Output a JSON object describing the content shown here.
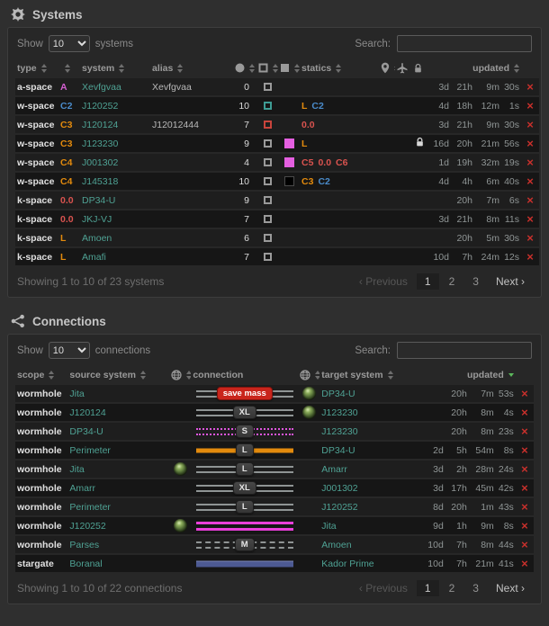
{
  "colors": {
    "link": "#4fa294",
    "orange": "#e28a0d",
    "blue": "#4a8bca",
    "red": "#d9534f",
    "magenta": "#d45fd0",
    "green_sort": "#5cb85c",
    "delete_red": "#c9302c",
    "box_grey": "#9a9a9a",
    "box_teal": "#3e9c94",
    "box_red": "#c9443c",
    "tag_magenta": "#e45fe0",
    "tag_black": "#000000",
    "line_grey": "#8f9494",
    "line_orange": "#e28a0d",
    "line_magenta": "#ea3fda",
    "line_dotted_magenta": "#df56df",
    "line_navy": "#4d5a93",
    "badge_danger_bg": "#c9251c",
    "updated_cell_bg": "rgba(66,139,139,0.16)"
  },
  "systems": {
    "title": "Systems",
    "title_icon": "gear-icon",
    "controls": {
      "show_label": "Show",
      "show_value": "10",
      "show_unit": "systems",
      "search_label": "Search:",
      "search_value": ""
    },
    "columns": [
      {
        "key": "type",
        "label": "type",
        "sortable": true
      },
      {
        "key": "security",
        "label": "",
        "sortable": true
      },
      {
        "key": "system",
        "label": "system",
        "sortable": true
      },
      {
        "key": "alias",
        "label": "alias",
        "sortable": true
      },
      {
        "key": "count",
        "icon": "circle-icon",
        "sortable": true
      },
      {
        "key": "status",
        "icon": "square-outline-icon",
        "sortable": true
      },
      {
        "key": "tag",
        "icon": "square-filled-icon",
        "sortable": true
      },
      {
        "key": "statics",
        "label": "statics",
        "sortable": true
      },
      {
        "key": "location",
        "icon": "map-pin-icon",
        "sortable": true
      },
      {
        "key": "jumps",
        "icon": "plane-icon",
        "sortable": true
      },
      {
        "key": "locked",
        "icon": "lock-icon",
        "sortable": true
      },
      {
        "key": "updated",
        "label": "updated",
        "sortable": true
      },
      {
        "key": "delete",
        "label": ""
      }
    ],
    "rows": [
      {
        "type": "a-space",
        "sec": "A",
        "sec_color": "magenta",
        "system": "Xevfgvaa",
        "alias": "Xevfgvaa",
        "count": "0",
        "box": "box_grey",
        "tag": null,
        "statics": [],
        "locked": false,
        "updated": [
          "3d",
          "21h",
          "9m",
          "30s"
        ]
      },
      {
        "type": "w-space",
        "sec": "C2",
        "sec_color": "blue",
        "system": "J120252",
        "alias": "",
        "count": "10",
        "box": "box_teal",
        "tag": null,
        "statics": [
          [
            "L",
            "orange"
          ],
          [
            "C2",
            "blue"
          ]
        ],
        "locked": false,
        "updated": [
          "4d",
          "18h",
          "12m",
          "1s"
        ]
      },
      {
        "type": "w-space",
        "sec": "C3",
        "sec_color": "orange",
        "system": "J120124",
        "alias": "J12012444",
        "count": "7",
        "box": "box_red",
        "tag": null,
        "statics": [
          [
            "0.0",
            "red"
          ]
        ],
        "locked": false,
        "updated": [
          "3d",
          "21h",
          "9m",
          "30s"
        ]
      },
      {
        "type": "w-space",
        "sec": "C3",
        "sec_color": "orange",
        "system": "J123230",
        "alias": "",
        "count": "9",
        "box": "box_grey",
        "tag": "tag_magenta",
        "statics": [
          [
            "L",
            "orange"
          ]
        ],
        "locked": true,
        "updated": [
          "16d",
          "20h",
          "21m",
          "56s"
        ]
      },
      {
        "type": "w-space",
        "sec": "C4",
        "sec_color": "orange",
        "system": "J001302",
        "alias": "",
        "count": "4",
        "box": "box_grey",
        "tag": "tag_magenta",
        "statics": [
          [
            "C5",
            "red"
          ],
          [
            "0.0",
            "red"
          ],
          [
            "C6",
            "red"
          ]
        ],
        "locked": false,
        "updated": [
          "1d",
          "19h",
          "32m",
          "19s"
        ]
      },
      {
        "type": "w-space",
        "sec": "C4",
        "sec_color": "orange",
        "system": "J145318",
        "alias": "",
        "count": "10",
        "box": "box_grey",
        "tag": "tag_black",
        "statics": [
          [
            "C3",
            "orange"
          ],
          [
            "C2",
            "blue"
          ]
        ],
        "locked": false,
        "updated": [
          "4d",
          "4h",
          "6m",
          "40s"
        ]
      },
      {
        "type": "k-space",
        "sec": "0.0",
        "sec_color": "red",
        "system": "DP34-U",
        "alias": "",
        "count": "9",
        "box": "box_grey",
        "tag": null,
        "statics": [],
        "locked": false,
        "updated": [
          "",
          "20h",
          "7m",
          "6s"
        ]
      },
      {
        "type": "k-space",
        "sec": "0.0",
        "sec_color": "red",
        "system": "JKJ-VJ",
        "alias": "",
        "count": "7",
        "box": "box_grey",
        "tag": null,
        "statics": [],
        "locked": false,
        "updated": [
          "3d",
          "21h",
          "8m",
          "11s"
        ]
      },
      {
        "type": "k-space",
        "sec": "L",
        "sec_color": "orange",
        "system": "Amoen",
        "alias": "",
        "count": "6",
        "box": "box_grey",
        "tag": null,
        "statics": [],
        "locked": false,
        "updated": [
          "",
          "20h",
          "5m",
          "30s"
        ]
      },
      {
        "type": "k-space",
        "sec": "L",
        "sec_color": "orange",
        "system": "Amafi",
        "alias": "",
        "count": "7",
        "box": "box_grey",
        "tag": null,
        "statics": [],
        "locked": false,
        "updated": [
          "10d",
          "7h",
          "24m",
          "12s"
        ]
      }
    ],
    "footer": {
      "showing": "Showing 1 to 10 of 23 systems"
    },
    "pagination": {
      "previous": "Previous",
      "pages": [
        "1",
        "2",
        "3"
      ],
      "active_page": "1",
      "next": "Next"
    }
  },
  "connections": {
    "title": "Connections",
    "title_icon": "share-nodes-icon",
    "controls": {
      "show_label": "Show",
      "show_value": "10",
      "show_unit": "connections",
      "search_label": "Search:",
      "search_value": ""
    },
    "columns": [
      {
        "key": "scope",
        "label": "scope",
        "sortable": true
      },
      {
        "key": "source",
        "label": "source system",
        "sortable": true
      },
      {
        "key": "source_endpoint",
        "icon": "globe-icon",
        "sortable": true
      },
      {
        "key": "connection",
        "label": "connection"
      },
      {
        "key": "target_endpoint",
        "icon": "globe-icon",
        "sortable": true
      },
      {
        "key": "target",
        "label": "target system",
        "sortable": true
      },
      {
        "key": "updated",
        "label": "updated",
        "sortable": true,
        "sorted": "desc"
      },
      {
        "key": "delete",
        "label": ""
      }
    ],
    "rows": [
      {
        "scope": "wormhole",
        "source": "Jita",
        "source_icon": false,
        "line": "grey",
        "badge": "save mass",
        "badge_style": "danger",
        "target_icon": true,
        "target": "DP34-U",
        "updated": [
          "",
          "20h",
          "7m",
          "53s"
        ]
      },
      {
        "scope": "wormhole",
        "source": "J120124",
        "source_icon": false,
        "line": "grey",
        "badge": "XL",
        "badge_style": "size",
        "target_icon": true,
        "target": "J123230",
        "updated": [
          "",
          "20h",
          "8m",
          "4s"
        ]
      },
      {
        "scope": "wormhole",
        "source": "DP34-U",
        "source_icon": false,
        "line": "dotted-magenta",
        "badge": "S",
        "badge_style": "size",
        "target_icon": false,
        "target": "J123230",
        "updated": [
          "",
          "20h",
          "8m",
          "23s"
        ]
      },
      {
        "scope": "wormhole",
        "source": "Perimeter",
        "source_icon": false,
        "line": "orange",
        "badge": "L",
        "badge_style": "size",
        "target_icon": false,
        "target": "DP34-U",
        "updated": [
          "2d",
          "5h",
          "54m",
          "8s"
        ]
      },
      {
        "scope": "wormhole",
        "source": "Jita",
        "source_icon": true,
        "line": "grey",
        "badge": "L",
        "badge_style": "size",
        "target_icon": false,
        "target": "Amarr",
        "updated": [
          "3d",
          "2h",
          "28m",
          "24s"
        ]
      },
      {
        "scope": "wormhole",
        "source": "Amarr",
        "source_icon": false,
        "line": "grey",
        "badge": "XL",
        "badge_style": "size",
        "target_icon": false,
        "target": "J001302",
        "updated": [
          "3d",
          "17h",
          "45m",
          "42s"
        ]
      },
      {
        "scope": "wormhole",
        "source": "Perimeter",
        "source_icon": false,
        "line": "grey",
        "badge": "L",
        "badge_style": "size",
        "target_icon": false,
        "target": "J120252",
        "updated": [
          "8d",
          "20h",
          "1m",
          "43s"
        ]
      },
      {
        "scope": "wormhole",
        "source": "J120252",
        "source_icon": true,
        "line": "magenta",
        "badge": null,
        "badge_style": null,
        "target_icon": false,
        "target": "Jita",
        "updated": [
          "9d",
          "1h",
          "9m",
          "8s"
        ]
      },
      {
        "scope": "wormhole",
        "source": "Parses",
        "source_icon": false,
        "line": "grey-dashed",
        "badge": "M",
        "badge_style": "size",
        "target_icon": false,
        "target": "Amoen",
        "updated": [
          "10d",
          "7h",
          "8m",
          "44s"
        ]
      },
      {
        "scope": "stargate",
        "source": "Boranal",
        "source_icon": false,
        "line": "navy",
        "badge": null,
        "badge_style": null,
        "target_icon": false,
        "target": "Kador Prime",
        "updated": [
          "10d",
          "7h",
          "21m",
          "41s"
        ]
      }
    ],
    "footer": {
      "showing": "Showing 1 to 10 of 22 connections"
    },
    "pagination": {
      "previous": "Previous",
      "pages": [
        "1",
        "2",
        "3"
      ],
      "active_page": "1",
      "next": "Next"
    }
  }
}
